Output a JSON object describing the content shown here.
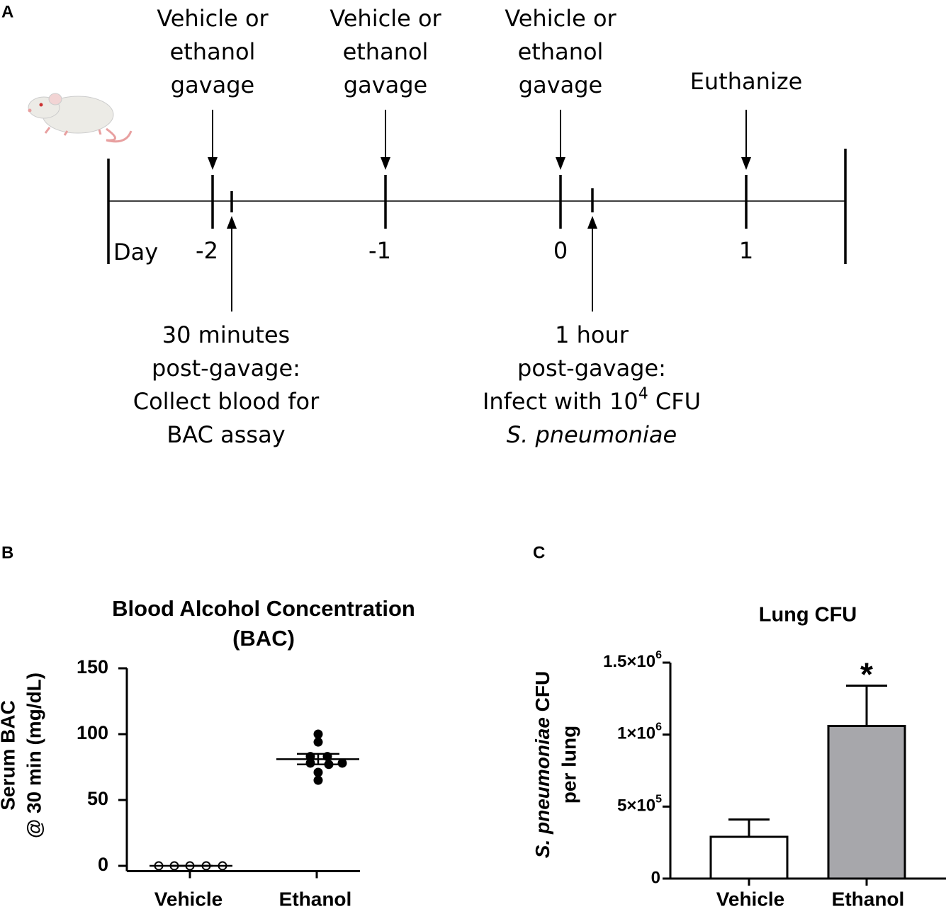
{
  "timeline": {
    "label": "A",
    "events": [
      {
        "lines": [
          "Vehicle or",
          "ethanol",
          "gavage"
        ]
      },
      {
        "lines": [
          "Vehicle or",
          "ethanol",
          "gavage"
        ]
      },
      {
        "lines": [
          "Vehicle or",
          "ethanol",
          "gavage"
        ]
      },
      {
        "lines": [
          "Euthanize"
        ]
      }
    ],
    "day_label": "Day",
    "days": [
      "-2",
      "-1",
      "0",
      "1"
    ],
    "notes": [
      {
        "lines": [
          "30 minutes",
          "post-gavage:",
          "Collect blood for",
          "BAC assay"
        ]
      },
      {
        "lines": [
          "1 hour",
          "post-gavage:"
        ],
        "infect": [
          "Infect with 10",
          "4",
          " CFU"
        ],
        "organism": "S. pneumoniae"
      }
    ]
  },
  "chart_data": [
    {
      "type": "scatter",
      "label": "B",
      "title_lines": [
        "Blood Alcohol Concentration",
        "(BAC)"
      ],
      "ylabel_lines": [
        "Serum BAC",
        "@ 30 min (mg/dL)"
      ],
      "categories": [
        "Vehicle",
        "Ethanol"
      ],
      "groups": [
        {
          "values": [
            0,
            0,
            0,
            0,
            0
          ],
          "mean": 0,
          "error": 0,
          "filled": false
        },
        {
          "values": [
            100,
            94,
            83,
            83,
            78,
            78,
            77,
            71,
            65
          ],
          "mean": 81,
          "error": 4,
          "filled": true
        }
      ],
      "ylim": [
        -4,
        150
      ],
      "yticks": [
        0,
        50,
        100,
        150
      ]
    },
    {
      "type": "bar",
      "label": "C",
      "title": "Lung CFU",
      "ylabel": {
        "italic": "S. pneumoniae",
        "rest": " CFU",
        "line2": "per lung"
      },
      "categories": [
        "Vehicle",
        "Ethanol"
      ],
      "values": [
        290000,
        1060000
      ],
      "errors": [
        120000,
        280000
      ],
      "colors": [
        "#ffffff",
        "#a7a7ab"
      ],
      "ylim": [
        0,
        1500000
      ],
      "yticks": [
        0,
        {
          "value": 500000,
          "label": "5×10",
          "exponent": "5"
        },
        {
          "value": 1000000,
          "label": "1×10",
          "exponent": "6"
        },
        {
          "value": 1500000,
          "label": "1.5×10",
          "exponent": "6"
        }
      ],
      "annotations": [
        {
          "text": "*",
          "category": 1
        }
      ]
    }
  ]
}
